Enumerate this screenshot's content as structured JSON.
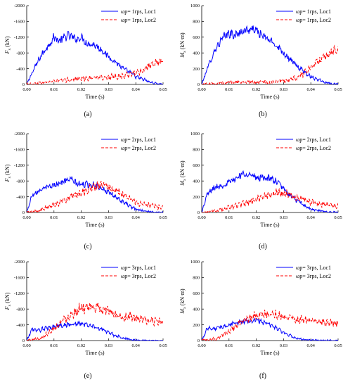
{
  "chart_data": [
    {
      "type": "line",
      "panel_label": "(a)",
      "ylabel_main": "F",
      "ylabel_sub": "x",
      "ylabel_unit": "(kN)",
      "xlabel": "Time (s)",
      "xlim": [
        0,
        0.05
      ],
      "ylim": [
        0,
        -2000
      ],
      "xticks": [
        "0.00",
        "0.01",
        "0.02",
        "0.03",
        "0.04",
        "0.05"
      ],
      "yticks": [
        "0",
        "-400",
        "-800",
        "-1200",
        "-1600",
        "-2000"
      ],
      "ytick_values": [
        0,
        -400,
        -800,
        -1200,
        -1600,
        -2000
      ],
      "legend_position": "top-right",
      "series": [
        {
          "name": "ωp= 1rps, Loc1",
          "color": "#0000ff",
          "dash": "none",
          "x": [
            0,
            0.002,
            0.005,
            0.008,
            0.01,
            0.012,
            0.015,
            0.018,
            0.02,
            0.022,
            0.025,
            0.028,
            0.03,
            0.033,
            0.035,
            0.038,
            0.04,
            0.043,
            0.045,
            0.048,
            0.05
          ],
          "y": [
            0,
            -300,
            -700,
            -1000,
            -1200,
            -1100,
            -1250,
            -1150,
            -1200,
            -1050,
            -1000,
            -850,
            -700,
            -550,
            -420,
            -300,
            -200,
            -120,
            -60,
            -20,
            -10
          ]
        },
        {
          "name": "ωp= 1rps, Loc2",
          "color": "#ff0000",
          "dash": "4,2",
          "x": [
            0,
            0.005,
            0.01,
            0.015,
            0.02,
            0.025,
            0.03,
            0.033,
            0.035,
            0.038,
            0.04,
            0.043,
            0.045,
            0.048,
            0.05
          ],
          "y": [
            0,
            -40,
            -80,
            -110,
            -150,
            -170,
            -180,
            -200,
            -220,
            -250,
            -300,
            -380,
            -450,
            -550,
            -620
          ]
        }
      ]
    },
    {
      "type": "line",
      "panel_label": "(b)",
      "ylabel_main": "M",
      "ylabel_sub": "x",
      "ylabel_unit": "(kN·m)",
      "xlabel": "Time (s)",
      "xlim": [
        0,
        0.05
      ],
      "ylim": [
        0,
        1000
      ],
      "xticks": [
        "0.00",
        "0.01",
        "0.02",
        "0.03",
        "0.04",
        "0.05"
      ],
      "yticks": [
        "0",
        "200",
        "400",
        "600",
        "800",
        "1000"
      ],
      "ytick_values": [
        0,
        200,
        400,
        600,
        800,
        1000
      ],
      "legend_position": "top-right",
      "series": [
        {
          "name": "ωp= 1rps, Loc1",
          "color": "#0000ff",
          "dash": "none",
          "x": [
            0,
            0.002,
            0.005,
            0.008,
            0.01,
            0.012,
            0.015,
            0.018,
            0.02,
            0.022,
            0.025,
            0.028,
            0.03,
            0.033,
            0.035,
            0.038,
            0.04,
            0.043,
            0.045,
            0.048,
            0.05
          ],
          "y": [
            0,
            200,
            450,
            600,
            650,
            620,
            680,
            700,
            690,
            620,
            560,
            480,
            400,
            300,
            230,
            150,
            100,
            60,
            30,
            10,
            5
          ]
        },
        {
          "name": "ωp= 1rps, Loc2",
          "color": "#ff0000",
          "dash": "4,2",
          "x": [
            0,
            0.005,
            0.01,
            0.015,
            0.02,
            0.025,
            0.03,
            0.033,
            0.035,
            0.038,
            0.04,
            0.043,
            0.045,
            0.048,
            0.05
          ],
          "y": [
            0,
            15,
            25,
            30,
            30,
            30,
            40,
            60,
            90,
            150,
            220,
            300,
            360,
            430,
            480
          ]
        }
      ]
    },
    {
      "type": "line",
      "panel_label": "(c)",
      "ylabel_main": "F",
      "ylabel_sub": "x",
      "ylabel_unit": "(kN)",
      "xlabel": "Time (s)",
      "xlim": [
        0,
        0.05
      ],
      "ylim": [
        0,
        -2000
      ],
      "xticks": [
        "0.00",
        "0.01",
        "0.02",
        "0.03",
        "0.04",
        "0.05"
      ],
      "yticks": [
        "0",
        "-400",
        "-800",
        "-1200",
        "-1600",
        "-2000"
      ],
      "ytick_values": [
        0,
        -400,
        -800,
        -1200,
        -1600,
        -2000
      ],
      "legend_position": "top-right",
      "series": [
        {
          "name": "ωp= 2rps, Loc1",
          "color": "#0000ff",
          "dash": "none",
          "x": [
            0,
            0.002,
            0.004,
            0.006,
            0.008,
            0.01,
            0.012,
            0.014,
            0.016,
            0.018,
            0.02,
            0.022,
            0.025,
            0.028,
            0.03,
            0.033,
            0.035,
            0.038,
            0.04,
            0.045,
            0.05
          ],
          "y": [
            0,
            -450,
            -550,
            -600,
            -650,
            -700,
            -750,
            -800,
            -850,
            -750,
            -700,
            -720,
            -700,
            -600,
            -500,
            -380,
            -280,
            -150,
            -80,
            -20,
            -5
          ]
        },
        {
          "name": "ωp= 2rps, Loc2",
          "color": "#ff0000",
          "dash": "4,2",
          "x": [
            0,
            0.005,
            0.01,
            0.015,
            0.02,
            0.025,
            0.028,
            0.03,
            0.033,
            0.035,
            0.038,
            0.04,
            0.043,
            0.045,
            0.048,
            0.05
          ],
          "y": [
            0,
            -50,
            -200,
            -350,
            -500,
            -650,
            -700,
            -650,
            -550,
            -450,
            -350,
            -250,
            -200,
            -180,
            -150,
            -120
          ]
        }
      ]
    },
    {
      "type": "line",
      "panel_label": "(d)",
      "ylabel_main": "M",
      "ylabel_sub": "x",
      "ylabel_unit": "(kN·m)",
      "xlabel": "Time (s)",
      "xlim": [
        0,
        0.05
      ],
      "ylim": [
        0,
        1000
      ],
      "xticks": [
        "0.00",
        "0.01",
        "0.02",
        "0.03",
        "0.04",
        "0.05"
      ],
      "yticks": [
        "0",
        "200",
        "400",
        "600",
        "800",
        "1000"
      ],
      "ytick_values": [
        0,
        200,
        400,
        600,
        800,
        1000
      ],
      "legend_position": "top-right",
      "series": [
        {
          "name": "ωp= 2rps, Loc1",
          "color": "#0000ff",
          "dash": "none",
          "x": [
            0,
            0.002,
            0.004,
            0.006,
            0.008,
            0.01,
            0.012,
            0.014,
            0.016,
            0.018,
            0.02,
            0.022,
            0.025,
            0.028,
            0.03,
            0.033,
            0.035,
            0.038,
            0.04,
            0.045,
            0.05
          ],
          "y": [
            0,
            230,
            300,
            330,
            350,
            380,
            420,
            470,
            500,
            470,
            440,
            450,
            430,
            380,
            300,
            200,
            150,
            80,
            40,
            10,
            2
          ]
        },
        {
          "name": "ωp= 2rps, Loc2",
          "color": "#ff0000",
          "dash": "4,2",
          "x": [
            0,
            0.005,
            0.01,
            0.015,
            0.02,
            0.025,
            0.028,
            0.03,
            0.033,
            0.035,
            0.038,
            0.04,
            0.043,
            0.045,
            0.048,
            0.05
          ],
          "y": [
            0,
            20,
            60,
            110,
            170,
            230,
            260,
            250,
            220,
            190,
            160,
            130,
            110,
            100,
            90,
            80
          ]
        }
      ]
    },
    {
      "type": "line",
      "panel_label": "(e)",
      "ylabel_main": "F",
      "ylabel_sub": "x",
      "ylabel_unit": "(kN)",
      "xlabel": "Time (s)",
      "xlim": [
        0,
        0.05
      ],
      "ylim": [
        0,
        -2000
      ],
      "xticks": [
        "0.00",
        "0.01",
        "0.02",
        "0.03",
        "0.04",
        "0.05"
      ],
      "yticks": [
        "0",
        "-400",
        "-800",
        "-1200",
        "-1600",
        "-2000"
      ],
      "ytick_values": [
        0,
        -400,
        -800,
        -1200,
        -1600,
        -2000
      ],
      "legend_position": "top-right",
      "series": [
        {
          "name": "ωp= 3rps, Loc1",
          "color": "#0000ff",
          "dash": "none",
          "x": [
            0,
            0.002,
            0.004,
            0.006,
            0.008,
            0.01,
            0.012,
            0.015,
            0.018,
            0.02,
            0.022,
            0.025,
            0.028,
            0.03,
            0.033,
            0.035,
            0.038,
            0.04,
            0.045,
            0.05
          ],
          "y": [
            0,
            -300,
            -250,
            -300,
            -320,
            -350,
            -380,
            -400,
            -420,
            -430,
            -400,
            -350,
            -280,
            -200,
            -120,
            -70,
            -30,
            -10,
            0,
            0
          ]
        },
        {
          "name": "ωp= 3rps, Loc2",
          "color": "#ff0000",
          "dash": "4,2",
          "x": [
            0,
            0.005,
            0.01,
            0.013,
            0.015,
            0.018,
            0.02,
            0.022,
            0.025,
            0.027,
            0.03,
            0.033,
            0.035,
            0.038,
            0.04,
            0.043,
            0.045,
            0.048,
            0.05
          ],
          "y": [
            0,
            -50,
            -300,
            -500,
            -600,
            -750,
            -850,
            -800,
            -850,
            -820,
            -750,
            -650,
            -600,
            -620,
            -550,
            -520,
            -500,
            -480,
            -470
          ]
        }
      ]
    },
    {
      "type": "line",
      "panel_label": "(f)",
      "ylabel_main": "M",
      "ylabel_sub": "x",
      "ylabel_unit": "(kN·m)",
      "xlabel": "Time (s)",
      "xlim": [
        0,
        0.05
      ],
      "ylim": [
        0,
        1000
      ],
      "xticks": [
        "0.00",
        "0.01",
        "0.02",
        "0.03",
        "0.04",
        "0.05"
      ],
      "yticks": [
        "0",
        "200",
        "400",
        "600",
        "800",
        "1000"
      ],
      "ytick_values": [
        0,
        200,
        400,
        600,
        800,
        1000
      ],
      "legend_position": "top-right",
      "series": [
        {
          "name": "ωp= 3rps, Loc1",
          "color": "#0000ff",
          "dash": "none",
          "x": [
            0,
            0.002,
            0.004,
            0.006,
            0.008,
            0.01,
            0.012,
            0.015,
            0.018,
            0.02,
            0.022,
            0.025,
            0.028,
            0.03,
            0.033,
            0.035,
            0.038,
            0.04,
            0.045,
            0.05
          ],
          "y": [
            0,
            160,
            150,
            160,
            180,
            200,
            220,
            240,
            250,
            260,
            240,
            200,
            150,
            100,
            50,
            25,
            10,
            5,
            0,
            0
          ]
        },
        {
          "name": "ωp= 3rps, Loc2",
          "color": "#ff0000",
          "dash": "4,2",
          "x": [
            0,
            0.005,
            0.01,
            0.013,
            0.015,
            0.018,
            0.02,
            0.022,
            0.025,
            0.027,
            0.03,
            0.033,
            0.035,
            0.038,
            0.04,
            0.043,
            0.045,
            0.048,
            0.05
          ],
          "y": [
            0,
            20,
            120,
            200,
            250,
            290,
            330,
            320,
            340,
            330,
            310,
            290,
            260,
            270,
            250,
            240,
            230,
            220,
            220
          ]
        }
      ]
    }
  ]
}
